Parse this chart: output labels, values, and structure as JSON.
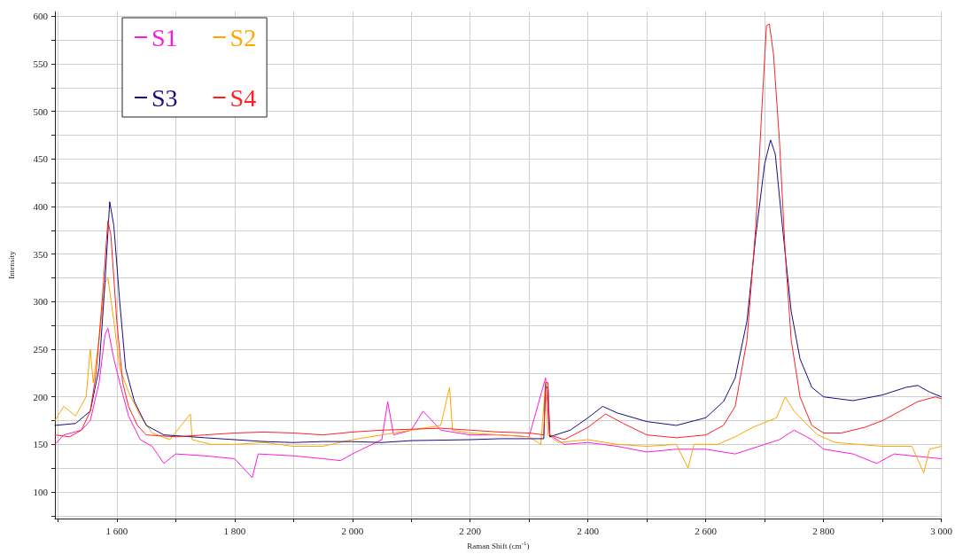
{
  "chart_data": {
    "type": "line",
    "xlabel": "Raman Shift (cm$^{-1}$)",
    "ylabel": "Intensity",
    "xlim": [
      1495,
      3000
    ],
    "ylim": [
      72,
      605
    ],
    "xticks": [
      {
        "value": 1500,
        "label": null
      },
      {
        "value": 1600,
        "label": "1 600"
      },
      {
        "value": 1700,
        "label": null
      },
      {
        "value": 1800,
        "label": "1 800"
      },
      {
        "value": 1900,
        "label": null
      },
      {
        "value": 2000,
        "label": "2 000"
      },
      {
        "value": 2100,
        "label": null
      },
      {
        "value": 2200,
        "label": "2 200"
      },
      {
        "value": 2300,
        "label": null
      },
      {
        "value": 2400,
        "label": "2 400"
      },
      {
        "value": 2500,
        "label": null
      },
      {
        "value": 2600,
        "label": "2 600"
      },
      {
        "value": 2700,
        "label": null
      },
      {
        "value": 2800,
        "label": "2 800"
      },
      {
        "value": 2900,
        "label": null
      },
      {
        "value": 3000,
        "label": "3 000"
      }
    ],
    "yticks": [
      {
        "value": 75,
        "label": null
      },
      100,
      {
        "value": 125,
        "label": null
      },
      150,
      {
        "value": 175,
        "label": null
      },
      200,
      {
        "value": 225,
        "label": null
      },
      250,
      {
        "value": 275,
        "label": null
      },
      300,
      {
        "value": 325,
        "label": null
      },
      350,
      {
        "value": 375,
        "label": null
      },
      400,
      {
        "value": 425,
        "label": null
      },
      450,
      {
        "value": 475,
        "label": null
      },
      500,
      {
        "value": 525,
        "label": null
      },
      550,
      {
        "value": 575,
        "label": null
      },
      600
    ],
    "grid": true,
    "legend": "top left",
    "marker": "none",
    "line_style": "solid",
    "series": [
      {
        "name": "S1",
        "color": "#ff1ad9",
        "x": [
          1495,
          1510,
          1540,
          1555,
          1570,
          1580,
          1585,
          1595,
          1605,
          1620,
          1640,
          1660,
          1680,
          1700,
          1750,
          1800,
          1830,
          1840,
          1900,
          1950,
          1980,
          2000,
          2050,
          2060,
          2070,
          2100,
          2120,
          2150,
          2200,
          2250,
          2300,
          2328,
          2335,
          2360,
          2400,
          2450,
          2500,
          2550,
          2600,
          2650,
          2700,
          2725,
          2750,
          2780,
          2800,
          2850,
          2890,
          2920,
          2950,
          3000
        ],
        "values": [
          150,
          160,
          165,
          175,
          215,
          265,
          272,
          240,
          215,
          180,
          155,
          148,
          130,
          140,
          138,
          135,
          115,
          140,
          138,
          135,
          133,
          140,
          155,
          195,
          160,
          165,
          185,
          165,
          160,
          160,
          158,
          220,
          160,
          150,
          152,
          148,
          142,
          145,
          145,
          140,
          150,
          155,
          165,
          155,
          145,
          140,
          130,
          140,
          138,
          135
        ]
      },
      {
        "name": "S2",
        "color": "#ffa500",
        "x": [
          1495,
          1510,
          1530,
          1548,
          1555,
          1560,
          1570,
          1580,
          1585,
          1595,
          1605,
          1620,
          1640,
          1660,
          1690,
          1725,
          1728,
          1760,
          1800,
          1850,
          1900,
          1950,
          2000,
          2050,
          2100,
          2150,
          2165,
          2170,
          2200,
          2250,
          2300,
          2320,
          2328,
          2332,
          2350,
          2400,
          2450,
          2500,
          2550,
          2570,
          2580,
          2620,
          2650,
          2680,
          2720,
          2735,
          2750,
          2770,
          2790,
          2820,
          2860,
          2900,
          2950,
          2970,
          2980,
          3000
        ],
        "values": [
          175,
          190,
          180,
          200,
          250,
          215,
          260,
          320,
          325,
          280,
          230,
          205,
          180,
          162,
          155,
          182,
          155,
          150,
          150,
          152,
          148,
          148,
          155,
          160,
          165,
          170,
          210,
          165,
          162,
          160,
          158,
          150,
          215,
          160,
          152,
          155,
          150,
          148,
          150,
          125,
          150,
          150,
          158,
          168,
          178,
          200,
          185,
          172,
          160,
          152,
          150,
          148,
          148,
          120,
          145,
          148
        ]
      },
      {
        "name": "S3",
        "color": "#1a0a80",
        "x": [
          1495,
          1530,
          1555,
          1570,
          1580,
          1588,
          1595,
          1605,
          1615,
          1630,
          1650,
          1680,
          1750,
          1800,
          1850,
          1900,
          1950,
          2000,
          2050,
          2100,
          2200,
          2250,
          2300,
          2325,
          2328,
          2332,
          2335,
          2370,
          2400,
          2425,
          2450,
          2500,
          2550,
          2600,
          2630,
          2650,
          2670,
          2685,
          2700,
          2710,
          2718,
          2730,
          2745,
          2760,
          2780,
          2800,
          2850,
          2900,
          2940,
          2960,
          2980,
          3000
        ],
        "values": [
          170,
          172,
          185,
          230,
          320,
          405,
          380,
          300,
          230,
          195,
          170,
          160,
          157,
          155,
          153,
          152,
          153,
          153,
          152,
          154,
          155,
          156,
          156,
          156,
          210,
          210,
          158,
          165,
          178,
          190,
          183,
          174,
          170,
          178,
          195,
          220,
          280,
          370,
          445,
          470,
          455,
          380,
          290,
          240,
          210,
          200,
          196,
          202,
          210,
          212,
          205,
          200
        ]
      },
      {
        "name": "S4",
        "color": "#ff2020",
        "x": [
          1495,
          1520,
          1540,
          1555,
          1565,
          1575,
          1585,
          1590,
          1600,
          1610,
          1620,
          1635,
          1650,
          1700,
          1750,
          1800,
          1850,
          1900,
          1950,
          2000,
          2050,
          2100,
          2150,
          2200,
          2250,
          2300,
          2325,
          2328,
          2332,
          2335,
          2360,
          2400,
          2430,
          2460,
          2500,
          2550,
          2600,
          2630,
          2650,
          2670,
          2685,
          2695,
          2703,
          2708,
          2715,
          2725,
          2735,
          2745,
          2760,
          2780,
          2800,
          2830,
          2870,
          2900,
          2930,
          2960,
          2990,
          3000
        ],
        "values": [
          160,
          158,
          165,
          185,
          225,
          300,
          385,
          370,
          280,
          215,
          190,
          170,
          160,
          158,
          160,
          162,
          163,
          162,
          160,
          163,
          165,
          166,
          167,
          165,
          163,
          162,
          160,
          215,
          215,
          160,
          155,
          168,
          182,
          172,
          160,
          157,
          160,
          170,
          190,
          260,
          380,
          500,
          590,
          592,
          560,
          470,
          350,
          260,
          200,
          170,
          162,
          162,
          168,
          175,
          185,
          195,
          200,
          198
        ]
      }
    ]
  }
}
